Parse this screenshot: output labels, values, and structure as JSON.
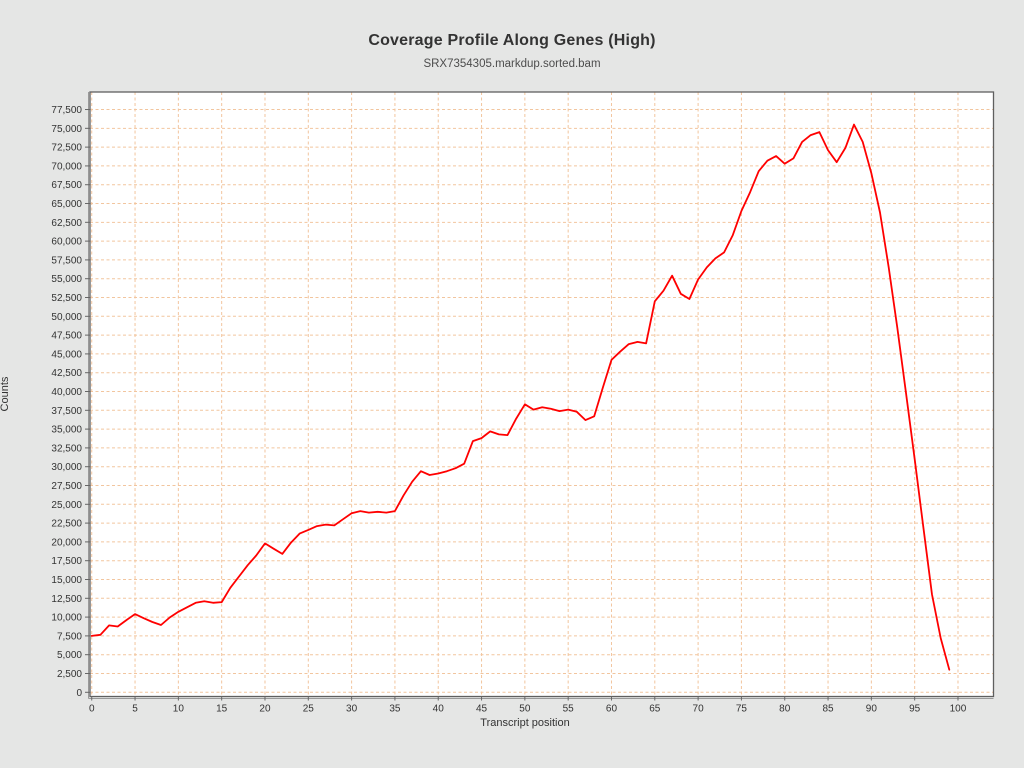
{
  "page": {
    "background_color": "#e5e6e5"
  },
  "chart_data": {
    "type": "line",
    "title": "Coverage Profile Along Genes (High)",
    "subtitle": "SRX7354305.markdup.sorted.bam",
    "xlabel": "Transcript position",
    "ylabel": "Counts",
    "grid": true,
    "legend": "none",
    "plot_bg": "#ffffff",
    "grid_color": "#f2c59e",
    "border_color": "#5f5f5f",
    "tick_color": "#666666",
    "tick_label_color": "#333333",
    "xlim": [
      -0.2,
      104.1
    ],
    "ylim": [
      -560,
      79830
    ],
    "x_ticks": [
      0,
      5,
      10,
      15,
      20,
      25,
      30,
      35,
      40,
      45,
      50,
      55,
      60,
      65,
      70,
      75,
      80,
      85,
      90,
      95,
      100
    ],
    "y_ticks": [
      0,
      2500,
      5000,
      7500,
      10000,
      12500,
      15000,
      17500,
      20000,
      22500,
      25000,
      27500,
      30000,
      32500,
      35000,
      37500,
      40000,
      42500,
      45000,
      47500,
      50000,
      52500,
      55000,
      57500,
      60000,
      62500,
      65000,
      67500,
      70000,
      72500,
      75000,
      77500
    ],
    "x": [
      0,
      1,
      2,
      3,
      4,
      5,
      6,
      7,
      8,
      9,
      10,
      11,
      12,
      13,
      14,
      15,
      16,
      17,
      18,
      19,
      20,
      21,
      22,
      23,
      24,
      25,
      26,
      27,
      28,
      29,
      30,
      31,
      32,
      33,
      34,
      35,
      36,
      37,
      38,
      39,
      40,
      41,
      42,
      43,
      44,
      45,
      46,
      47,
      48,
      49,
      50,
      51,
      52,
      53,
      54,
      55,
      56,
      57,
      58,
      59,
      60,
      61,
      62,
      63,
      64,
      65,
      66,
      67,
      68,
      69,
      70,
      71,
      72,
      73,
      74,
      75,
      76,
      77,
      78,
      79,
      80,
      81,
      82,
      83,
      84,
      85,
      86,
      87,
      88,
      89,
      90,
      91,
      92,
      93,
      94,
      95,
      96,
      97,
      98,
      99
    ],
    "series": [
      {
        "name": "coverage",
        "color": "#ff0000",
        "values": [
          7500,
          7650,
          8900,
          8750,
          9600,
          10400,
          9850,
          9350,
          8950,
          9950,
          10700,
          11300,
          11900,
          12100,
          11900,
          12000,
          13900,
          15400,
          16900,
          18200,
          19800,
          19100,
          18400,
          19900,
          21100,
          21600,
          22100,
          22300,
          22200,
          23000,
          23800,
          24100,
          23900,
          24000,
          23900,
          24100,
          26200,
          28000,
          29400,
          28900,
          29100,
          29400,
          29800,
          30400,
          33400,
          33800,
          34700,
          34300,
          34200,
          36400,
          38300,
          37600,
          37900,
          37700,
          37400,
          37600,
          37300,
          36200,
          36700,
          40500,
          44200,
          45300,
          46300,
          46600,
          46400,
          52000,
          53400,
          55400,
          53000,
          52300,
          54900,
          56500,
          57700,
          58500,
          60800,
          64000,
          66500,
          69300,
          70700,
          71300,
          70300,
          71000,
          73200,
          74100,
          74500,
          72100,
          70500,
          72400,
          75500,
          73200,
          69000,
          63800,
          56500,
          48500,
          39800,
          31000,
          22000,
          13000,
          7200,
          3000
        ]
      }
    ]
  }
}
